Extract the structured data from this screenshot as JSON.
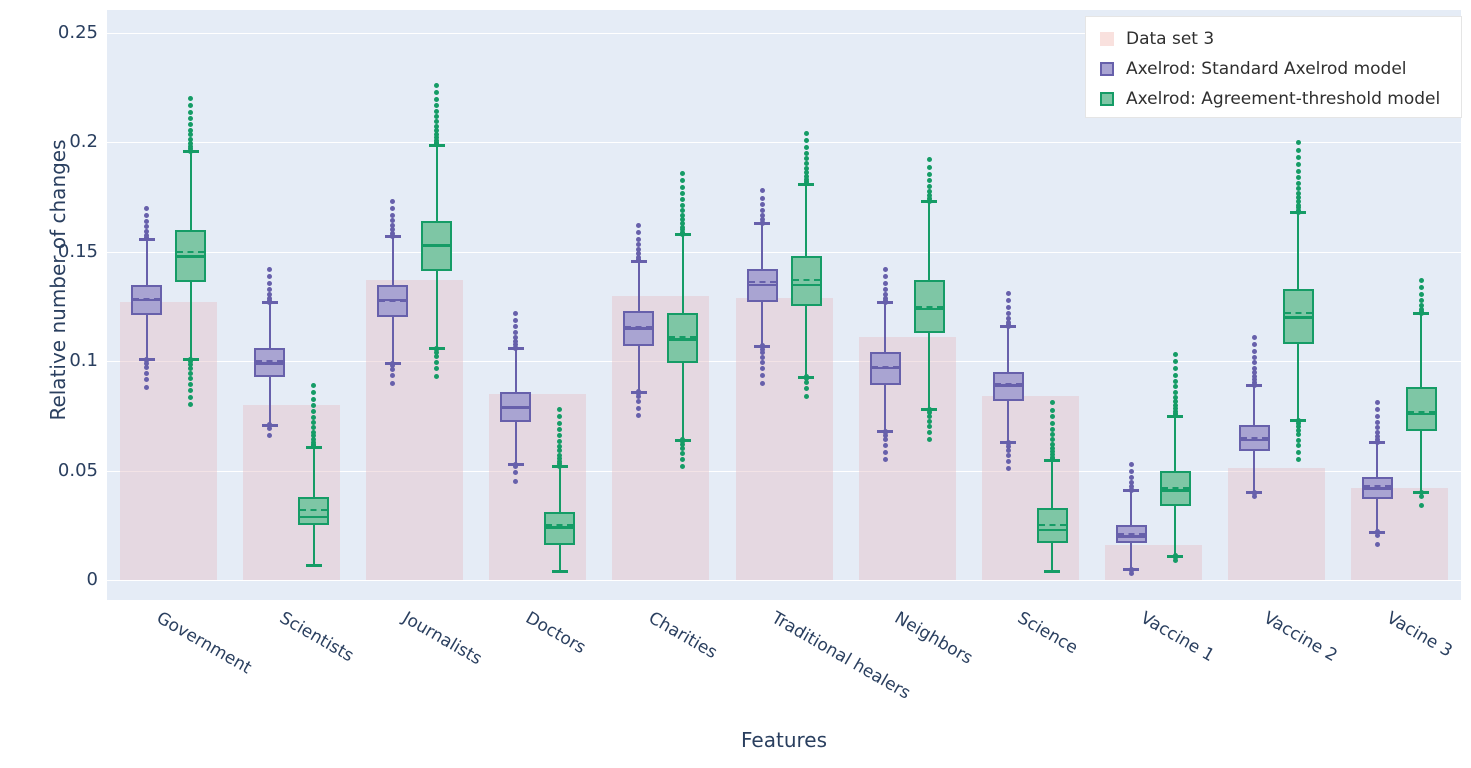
{
  "colors": {
    "plot_bg": "#e5ecf6",
    "grid": "#ffffff",
    "axis_text": "#2a3f5f",
    "legend_text": "#2f2f2f",
    "legend_bg": "#ffffff",
    "legend_border": "#e5e5e5"
  },
  "chart_data": {
    "type": "box",
    "title": "",
    "xlabel": "Features",
    "ylabel": "Relative number of changes",
    "categories": [
      "Government",
      "Scientists",
      "Journalists",
      "Doctors",
      "Charities",
      "Traditional healers",
      "Neighbors",
      "Science",
      "Vaccine 1",
      "Vaccine 2",
      "Vacine 3"
    ],
    "ytick_labels": [
      "0",
      "0.05",
      "0.1",
      "0.15",
      "0.2",
      "0.25"
    ],
    "yticks": [
      0,
      0.05,
      0.1,
      0.15,
      0.2,
      0.25
    ],
    "ylim": [
      -0.009,
      0.2605
    ],
    "grid": "horizontal",
    "legend_position": "top-right",
    "xtick_angle_deg": 30,
    "bar_series": {
      "name": "Data set 3",
      "fill": "rgba(228,192,200,0.45)",
      "legend_swatch": "#f9e1de",
      "values": [
        0.127,
        0.08,
        0.137,
        0.085,
        0.13,
        0.129,
        0.111,
        0.084,
        0.016,
        0.051,
        0.042
      ]
    },
    "box_series": [
      {
        "name": "Axelrod: Standard Axelrod model",
        "fill": "#a9a4d2",
        "line": "#6760ab",
        "boxes": [
          {
            "whisker_low": 0.101,
            "q1": 0.121,
            "median": 0.128,
            "mean": 0.1285,
            "q3": 0.135,
            "whisker_high": 0.156,
            "outliers_min": 0.088,
            "outliers_max": 0.17
          },
          {
            "whisker_low": 0.071,
            "q1": 0.093,
            "median": 0.099,
            "mean": 0.1,
            "q3": 0.106,
            "whisker_high": 0.127,
            "outliers_min": 0.066,
            "outliers_max": 0.142
          },
          {
            "whisker_low": 0.099,
            "q1": 0.12,
            "median": 0.128,
            "mean": 0.1275,
            "q3": 0.135,
            "whisker_high": 0.157,
            "outliers_min": 0.09,
            "outliers_max": 0.173
          },
          {
            "whisker_low": 0.053,
            "q1": 0.072,
            "median": 0.079,
            "mean": 0.0785,
            "q3": 0.086,
            "whisker_high": 0.106,
            "outliers_min": 0.045,
            "outliers_max": 0.122
          },
          {
            "whisker_low": 0.086,
            "q1": 0.107,
            "median": 0.115,
            "mean": 0.1155,
            "q3": 0.123,
            "whisker_high": 0.146,
            "outliers_min": 0.075,
            "outliers_max": 0.162
          },
          {
            "whisker_low": 0.107,
            "q1": 0.127,
            "median": 0.135,
            "mean": 0.136,
            "q3": 0.142,
            "whisker_high": 0.163,
            "outliers_min": 0.09,
            "outliers_max": 0.178
          },
          {
            "whisker_low": 0.068,
            "q1": 0.089,
            "median": 0.097,
            "mean": 0.0975,
            "q3": 0.104,
            "whisker_high": 0.127,
            "outliers_min": 0.055,
            "outliers_max": 0.142
          },
          {
            "whisker_low": 0.063,
            "q1": 0.082,
            "median": 0.089,
            "mean": 0.0895,
            "q3": 0.095,
            "whisker_high": 0.116,
            "outliers_min": 0.051,
            "outliers_max": 0.131
          },
          {
            "whisker_low": 0.005,
            "q1": 0.017,
            "median": 0.02,
            "mean": 0.021,
            "q3": 0.025,
            "whisker_high": 0.041,
            "outliers_min": 0.003,
            "outliers_max": 0.053
          },
          {
            "whisker_low": 0.04,
            "q1": 0.059,
            "median": 0.064,
            "mean": 0.065,
            "q3": 0.071,
            "whisker_high": 0.089,
            "outliers_min": 0.038,
            "outliers_max": 0.111
          },
          {
            "whisker_low": 0.022,
            "q1": 0.037,
            "median": 0.042,
            "mean": 0.043,
            "q3": 0.047,
            "whisker_high": 0.063,
            "outliers_min": 0.016,
            "outliers_max": 0.081
          }
        ]
      },
      {
        "name": "Axelrod: Agreement-threshold model",
        "fill": "#7ec6a5",
        "line": "#159c66",
        "boxes": [
          {
            "whisker_low": 0.101,
            "q1": 0.136,
            "median": 0.148,
            "mean": 0.15,
            "q3": 0.16,
            "whisker_high": 0.196,
            "outliers_min": 0.08,
            "outliers_max": 0.22
          },
          {
            "whisker_low": 0.007,
            "q1": 0.025,
            "median": 0.029,
            "mean": 0.032,
            "q3": 0.038,
            "whisker_high": 0.061,
            "outliers_min": null,
            "outliers_max": 0.089
          },
          {
            "whisker_low": 0.106,
            "q1": 0.141,
            "median": 0.153,
            "mean": 0.1525,
            "q3": 0.164,
            "whisker_high": 0.199,
            "outliers_min": 0.093,
            "outliers_max": 0.226
          },
          {
            "whisker_low": 0.004,
            "q1": 0.016,
            "median": 0.024,
            "mean": 0.025,
            "q3": 0.031,
            "whisker_high": 0.052,
            "outliers_min": null,
            "outliers_max": 0.078
          },
          {
            "whisker_low": 0.064,
            "q1": 0.099,
            "median": 0.11,
            "mean": 0.111,
            "q3": 0.122,
            "whisker_high": 0.158,
            "outliers_min": 0.052,
            "outliers_max": 0.186
          },
          {
            "whisker_low": 0.093,
            "q1": 0.125,
            "median": 0.135,
            "mean": 0.137,
            "q3": 0.148,
            "whisker_high": 0.181,
            "outliers_min": 0.084,
            "outliers_max": 0.204
          },
          {
            "whisker_low": 0.078,
            "q1": 0.113,
            "median": 0.124,
            "mean": 0.125,
            "q3": 0.137,
            "whisker_high": 0.173,
            "outliers_min": 0.064,
            "outliers_max": 0.192
          },
          {
            "whisker_low": 0.004,
            "q1": 0.017,
            "median": 0.023,
            "mean": 0.025,
            "q3": 0.033,
            "whisker_high": 0.055,
            "outliers_min": null,
            "outliers_max": 0.081
          },
          {
            "whisker_low": 0.011,
            "q1": 0.034,
            "median": 0.041,
            "mean": 0.042,
            "q3": 0.05,
            "whisker_high": 0.075,
            "outliers_min": 0.009,
            "outliers_max": 0.103
          },
          {
            "whisker_low": 0.073,
            "q1": 0.108,
            "median": 0.12,
            "mean": 0.122,
            "q3": 0.133,
            "whisker_high": 0.168,
            "outliers_min": 0.055,
            "outliers_max": 0.2
          },
          {
            "whisker_low": 0.04,
            "q1": 0.068,
            "median": 0.076,
            "mean": 0.077,
            "q3": 0.088,
            "whisker_high": 0.122,
            "outliers_min": 0.034,
            "outliers_max": 0.137
          }
        ]
      }
    ]
  }
}
